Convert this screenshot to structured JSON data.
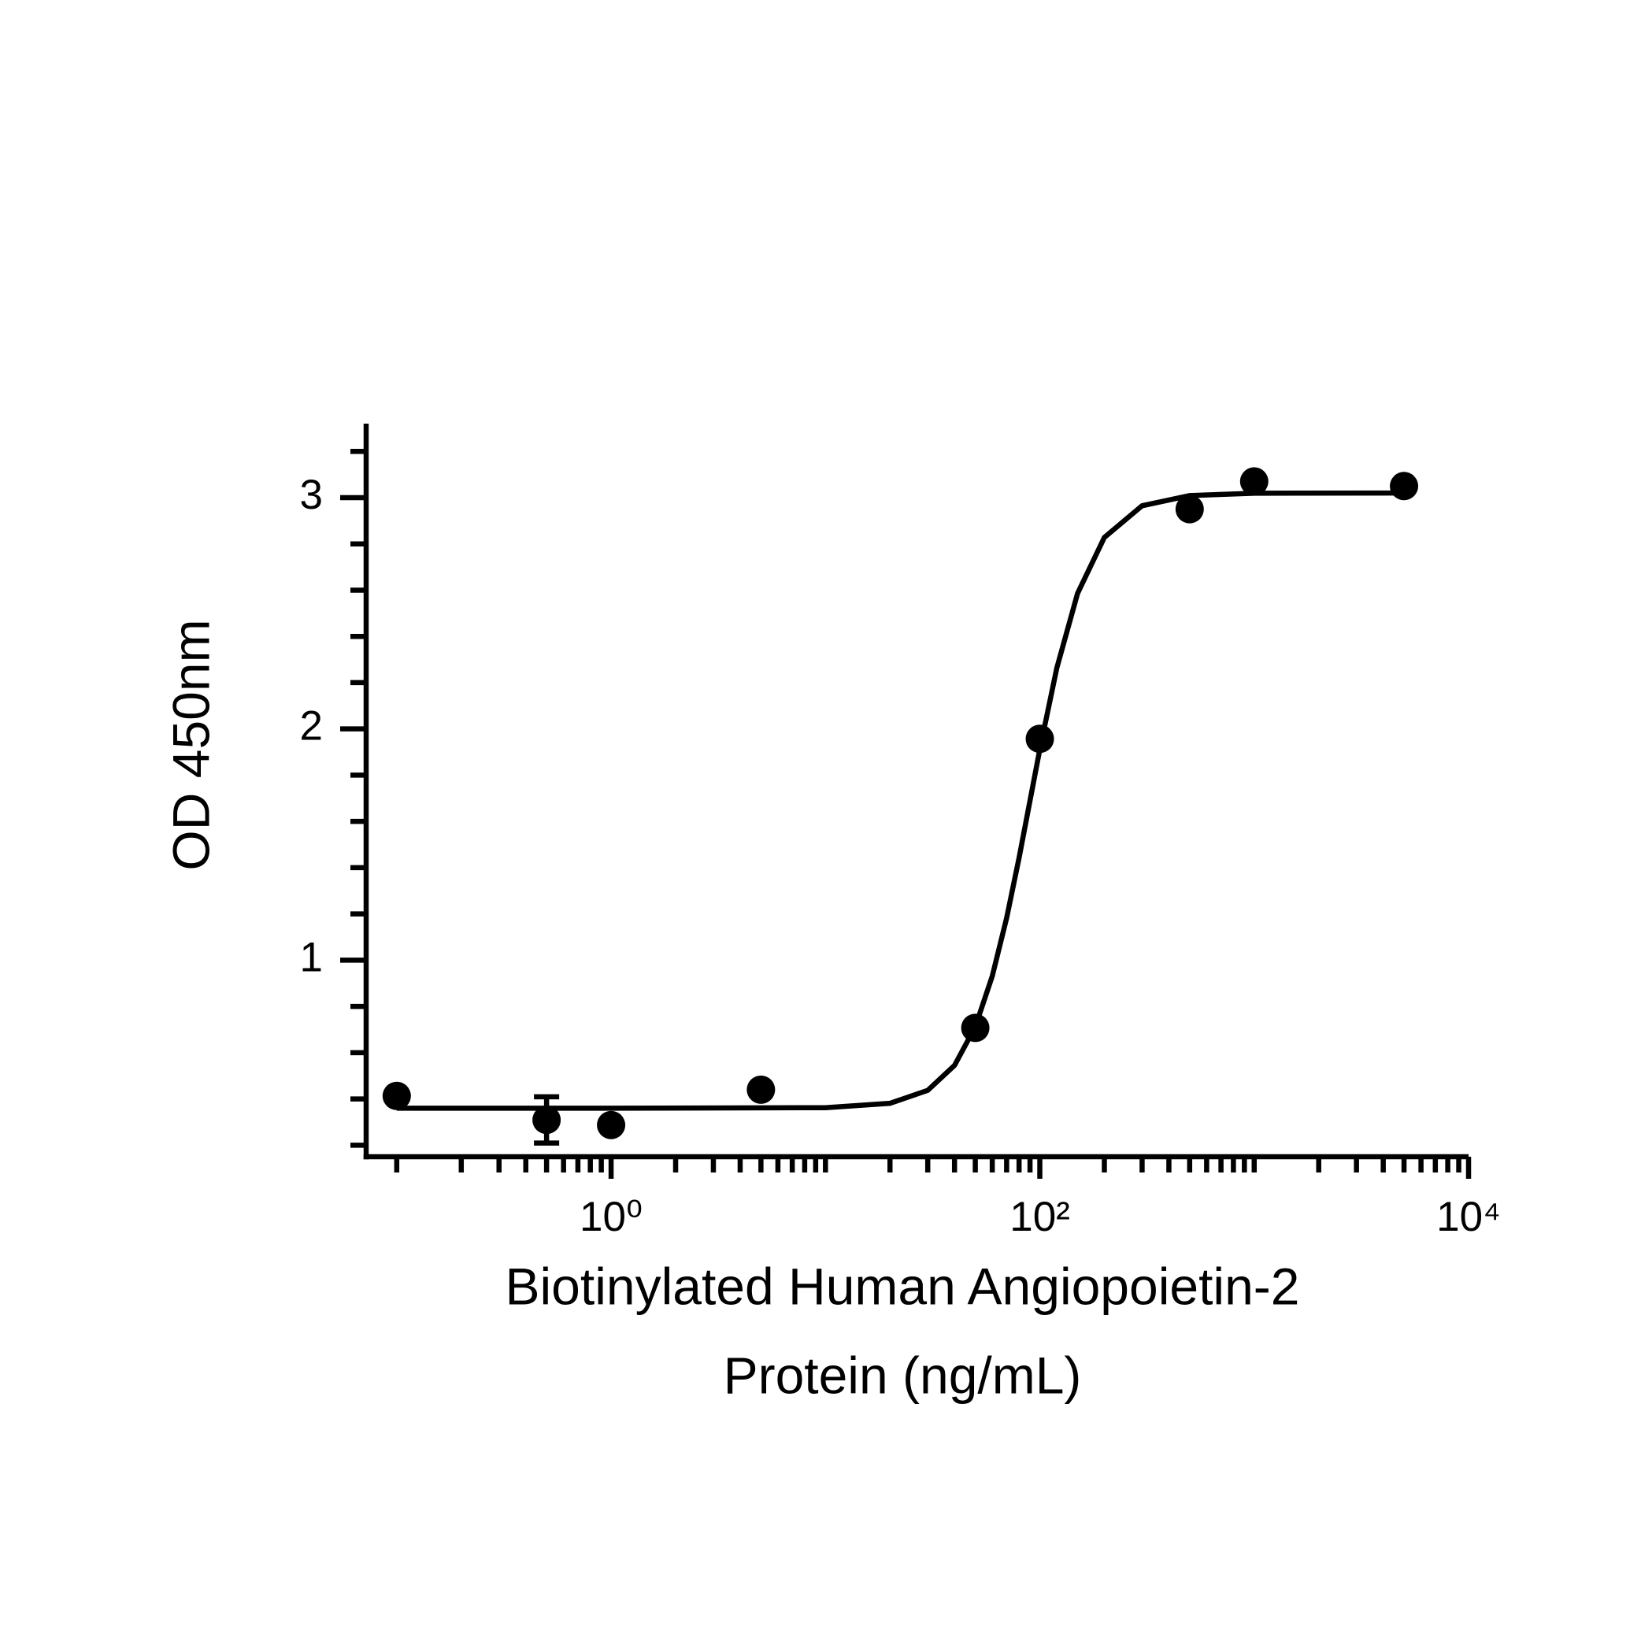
{
  "chart_data": {
    "type": "scatter",
    "y_label": "OD 450nm",
    "x_label": [
      "Biotinylated Human Angiopoietin-2",
      "Protein (ng/mL)"
    ],
    "x_scale": "log",
    "xlim": [
      0.072,
      10000
    ],
    "xticks": [
      {
        "value": 1,
        "label": "10⁰"
      },
      {
        "value": 100,
        "label": "10²"
      },
      {
        "value": 10000,
        "label": "10⁴"
      }
    ],
    "xminorticks": [
      0.1,
      0.2,
      0.3,
      0.4,
      0.5,
      0.6,
      0.7,
      0.8,
      0.9,
      2,
      3,
      4,
      5,
      6,
      7,
      8,
      9,
      10,
      20,
      30,
      40,
      50,
      60,
      70,
      80,
      90,
      200,
      300,
      400,
      500,
      600,
      700,
      800,
      900,
      1000,
      2000,
      3000,
      4000,
      5000,
      6000,
      7000,
      8000,
      9000
    ],
    "ylim": [
      0.15,
      3.32
    ],
    "yticks": [
      1,
      2,
      3
    ],
    "yminorticks": [
      0.2,
      0.4,
      0.6,
      0.8,
      1.2,
      1.4,
      1.6,
      1.8,
      2.2,
      2.4,
      2.6,
      2.8,
      3.2
    ],
    "color": "#000000",
    "x": [
      0.1,
      0.5,
      1,
      5,
      50,
      100,
      500,
      1000,
      5000
    ],
    "values": [
      0.413,
      0.309,
      0.287,
      0.44,
      0.707,
      1.957,
      2.95,
      3.07,
      3.05
    ],
    "errors": [
      null,
      0.1,
      null,
      null,
      null,
      null,
      null,
      null,
      null
    ],
    "curve": {
      "x": [
        0.1,
        1,
        10,
        20,
        30,
        40,
        50,
        60,
        70,
        80,
        90,
        100,
        120,
        150,
        200,
        300,
        500,
        1000,
        5000
      ],
      "values": [
        0.36,
        0.36,
        0.362,
        0.381,
        0.437,
        0.545,
        0.712,
        0.931,
        1.182,
        1.442,
        1.69,
        1.912,
        2.263,
        2.586,
        2.828,
        2.965,
        3.009,
        3.019,
        3.02
      ]
    }
  }
}
